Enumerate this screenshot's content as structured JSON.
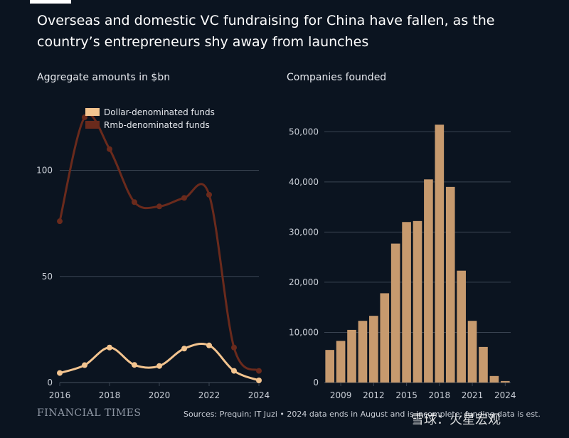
{
  "header": {
    "title": "Overseas and domestic VC fundraising for China have fallen, as the country’s entrepreneurs shy away from launches"
  },
  "footer": {
    "brand": "FINANCIAL TIMES",
    "source": "Sources: Prequin; IT Juzi • 2024 data ends in August and is incomplete; funding data is est.",
    "watermark": "雪球：火星宏观"
  },
  "colors": {
    "background": "#0b1420",
    "dollar": "#f3c48f",
    "rmb": "#6a2a1c",
    "bar": "#c79a6e",
    "grid": "#3a4452"
  },
  "chart_data": [
    {
      "type": "line",
      "title": "Aggregate amounts in $bn",
      "xlabel": "",
      "ylabel": "",
      "x": [
        2016,
        2017,
        2018,
        2019,
        2020,
        2021,
        2022,
        2023,
        2024
      ],
      "xticks": [
        "2016",
        "2018",
        "2020",
        "2022",
        "2024"
      ],
      "yticks": [
        0,
        50,
        100
      ],
      "ylim": [
        0,
        130
      ],
      "grid": true,
      "legend_position": "top-left",
      "series": [
        {
          "name": "Dollar-denominated funds",
          "values": [
            4.5,
            8.2,
            16.5,
            8.3,
            7.8,
            16.0,
            17.5,
            5.5,
            1.0
          ]
        },
        {
          "name": "Rmb-denominated funds",
          "values": [
            76,
            125,
            110,
            85,
            83,
            87,
            88.5,
            16.5,
            5.5
          ]
        }
      ]
    },
    {
      "type": "bar",
      "title": "Companies founded",
      "xlabel": "",
      "ylabel": "",
      "categories": [
        "2008",
        "2009",
        "2010",
        "2011",
        "2012",
        "2013",
        "2014",
        "2015",
        "2016",
        "2017",
        "2018",
        "2019",
        "2020",
        "2021",
        "2022",
        "2023",
        "2024"
      ],
      "xticks": [
        "2009",
        "2012",
        "2015",
        "2018",
        "2021",
        "2024"
      ],
      "values": [
        6500,
        8300,
        10500,
        12300,
        13300,
        17800,
        27700,
        32000,
        32200,
        40500,
        51400,
        39000,
        22300,
        12300,
        7100,
        1300,
        300
      ],
      "yticks": [
        "0",
        "10,000",
        "20,000",
        "30,000",
        "40,000",
        "50,000"
      ],
      "ylim": [
        0,
        55000
      ],
      "grid": true
    }
  ]
}
